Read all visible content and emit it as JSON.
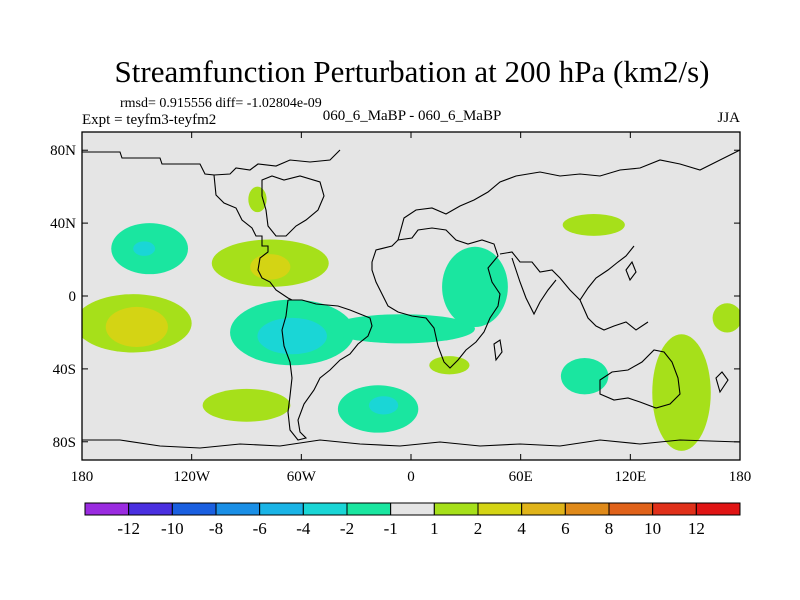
{
  "chart_data": {
    "type": "contour-map",
    "title": "Streamfunction Perturbation at 200 hPa (km2/s)",
    "stats_line": "rmsd= 0.915556 diff= -1.02804e-09",
    "experiment_label": "Expt = teyfm3-teyfm2",
    "case_label": "060_6_MaBP - 060_6_MaBP",
    "season_label": "JJA",
    "lon_range": [
      -180,
      180
    ],
    "lat_range": [
      -90,
      90
    ],
    "x_ticks": [
      {
        "lon": -180,
        "label": "180"
      },
      {
        "lon": -120,
        "label": "120W"
      },
      {
        "lon": -60,
        "label": "60W"
      },
      {
        "lon": 0,
        "label": "0"
      },
      {
        "lon": 60,
        "label": "60E"
      },
      {
        "lon": 120,
        "label": "120E"
      },
      {
        "lon": 180,
        "label": "180"
      }
    ],
    "y_ticks": [
      {
        "lat": 80,
        "label": "80N"
      },
      {
        "lat": 40,
        "label": "40N"
      },
      {
        "lat": 0,
        "label": "0"
      },
      {
        "lat": -40,
        "label": "40S"
      },
      {
        "lat": -80,
        "label": "80S"
      }
    ],
    "colorbar": {
      "colors": [
        "#9a2be0",
        "#4a2fe0",
        "#1a5fe0",
        "#1a8fe6",
        "#1ab4e6",
        "#1ad6d6",
        "#1ae6a0",
        "#e5e5e5",
        "#a6e01a",
        "#d4d414",
        "#e0b41a",
        "#e08a1a",
        "#e0621a",
        "#e0301a",
        "#e01414"
      ],
      "labels": [
        "-12",
        "-10",
        "-8",
        "-6",
        "-4",
        "-2",
        "-1",
        "1",
        "2",
        "4",
        "6",
        "8",
        "10",
        "12"
      ]
    },
    "features": [
      {
        "name": "negative-anomaly-north-pacific",
        "level": "-1",
        "color": "#1ae6a0",
        "lon": -143,
        "lat": 26,
        "rlon": 21,
        "rlat": 14
      },
      {
        "name": "negative-anomaly-core-north-pacific",
        "level": "-2",
        "color": "#1ad6d6",
        "lon": -146,
        "lat": 26,
        "rlon": 6,
        "rlat": 4
      },
      {
        "name": "positive-anomaly-north-america",
        "level": "1",
        "color": "#a6e01a",
        "lon": -77,
        "lat": 18,
        "rlon": 32,
        "rlat": 13
      },
      {
        "name": "positive-anomaly-core-north-america",
        "level": "2",
        "color": "#d4d414",
        "lon": -77,
        "lat": 16,
        "rlon": 11,
        "rlat": 7
      },
      {
        "name": "positive-anomaly-south-pacific",
        "level": "1",
        "color": "#a6e01a",
        "lon": -152,
        "lat": -15,
        "rlon": 32,
        "rlat": 16
      },
      {
        "name": "positive-anomaly-core-south-pacific",
        "level": "2",
        "color": "#d4d414",
        "lon": -150,
        "lat": -17,
        "rlon": 17,
        "rlat": 11
      },
      {
        "name": "negative-anomaly-tropical-america",
        "level": "-1",
        "color": "#1ae6a0",
        "lon": -65,
        "lat": -20,
        "rlon": 34,
        "rlat": 18
      },
      {
        "name": "negative-anomaly-tropical-atlantic",
        "level": "-1",
        "color": "#1ae6a0",
        "lon": -5,
        "lat": -18,
        "rlon": 40,
        "rlat": 8
      },
      {
        "name": "negative-anomaly-core-tropical-america",
        "level": "-2",
        "color": "#1ad6d6",
        "lon": -65,
        "lat": -22,
        "rlon": 19,
        "rlat": 10
      },
      {
        "name": "negative-anomaly-africa-indian",
        "level": "-1",
        "color": "#1ae6a0",
        "lon": 35,
        "lat": 5,
        "rlon": 18,
        "rlat": 22
      },
      {
        "name": "negative-anomaly-south-atlantic",
        "level": "-1",
        "color": "#1ae6a0",
        "lon": -18,
        "lat": -62,
        "rlon": 22,
        "rlat": 13
      },
      {
        "name": "negative-anomaly-core-south-atlantic",
        "level": "-2",
        "color": "#1ad6d6",
        "lon": -15,
        "lat": -60,
        "rlon": 8,
        "rlat": 5
      },
      {
        "name": "positive-anomaly-southeast-pacific",
        "level": "1",
        "color": "#a6e01a",
        "lon": -90,
        "lat": -60,
        "rlon": 24,
        "rlat": 9
      },
      {
        "name": "positive-anomaly-south-africa",
        "level": "1",
        "color": "#a6e01a",
        "lon": 21,
        "lat": -38,
        "rlon": 11,
        "rlat": 5
      },
      {
        "name": "positive-anomaly-east-asia",
        "level": "1",
        "color": "#a6e01a",
        "lon": 100,
        "lat": 39,
        "rlon": 17,
        "rlat": 6
      },
      {
        "name": "negative-anomaly-south-indian",
        "level": "-1",
        "color": "#1ae6a0",
        "lon": 95,
        "lat": -44,
        "rlon": 13,
        "rlat": 10
      },
      {
        "name": "positive-anomaly-australia",
        "level": "1",
        "color": "#a6e01a",
        "lon": 148,
        "lat": -53,
        "rlon": 16,
        "rlat": 32
      },
      {
        "name": "positive-anomaly-central-pacific",
        "level": "1",
        "color": "#a6e01a",
        "lon": 173,
        "lat": -12,
        "rlon": 8,
        "rlat": 8
      },
      {
        "name": "positive-anomaly-greenland",
        "level": "1",
        "color": "#a6e01a",
        "lon": -84,
        "lat": 53,
        "rlon": 5,
        "rlat": 7
      }
    ]
  }
}
